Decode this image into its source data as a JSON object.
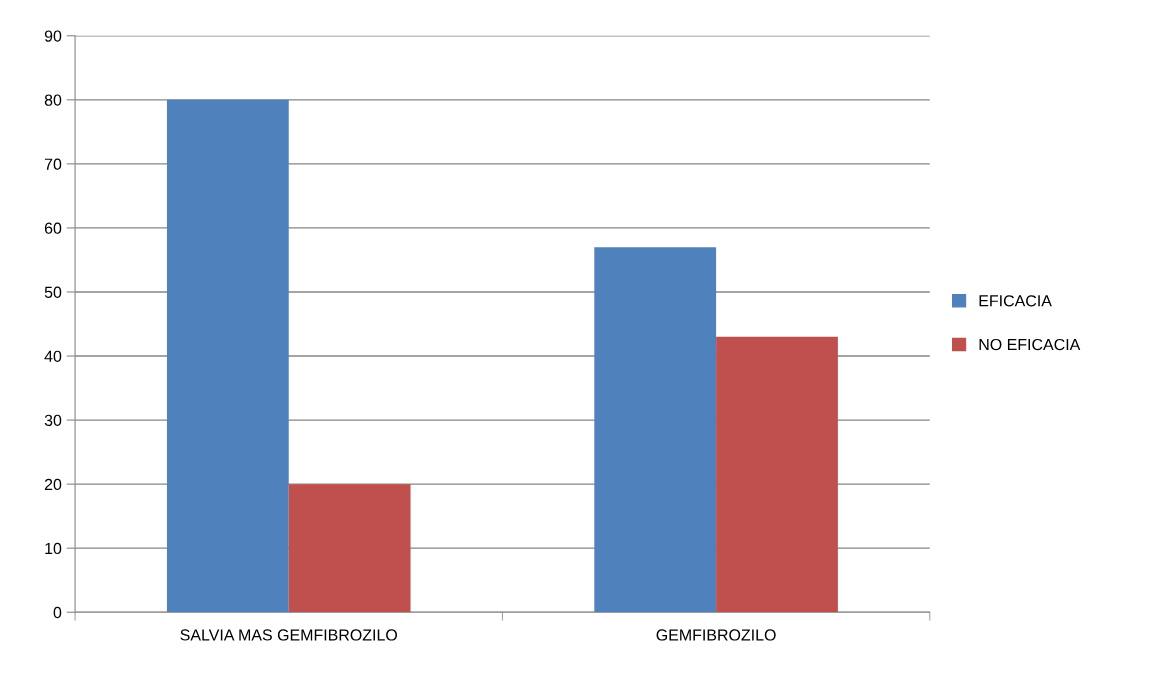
{
  "chart_data": {
    "type": "bar",
    "categories": [
      "SALVIA MAS GEMFIBROZILO",
      "GEMFIBROZILO"
    ],
    "series": [
      {
        "name": "EFICACIA",
        "color": "#4f81bd",
        "values": [
          80,
          57
        ]
      },
      {
        "name": "NO EFICACIA",
        "color": "#c0504d",
        "values": [
          20,
          43
        ]
      }
    ],
    "ylim": [
      0,
      90
    ],
    "yticks": [
      0,
      10,
      20,
      30,
      40,
      50,
      60,
      70,
      80,
      90
    ],
    "grid": "y",
    "legend": "right"
  }
}
